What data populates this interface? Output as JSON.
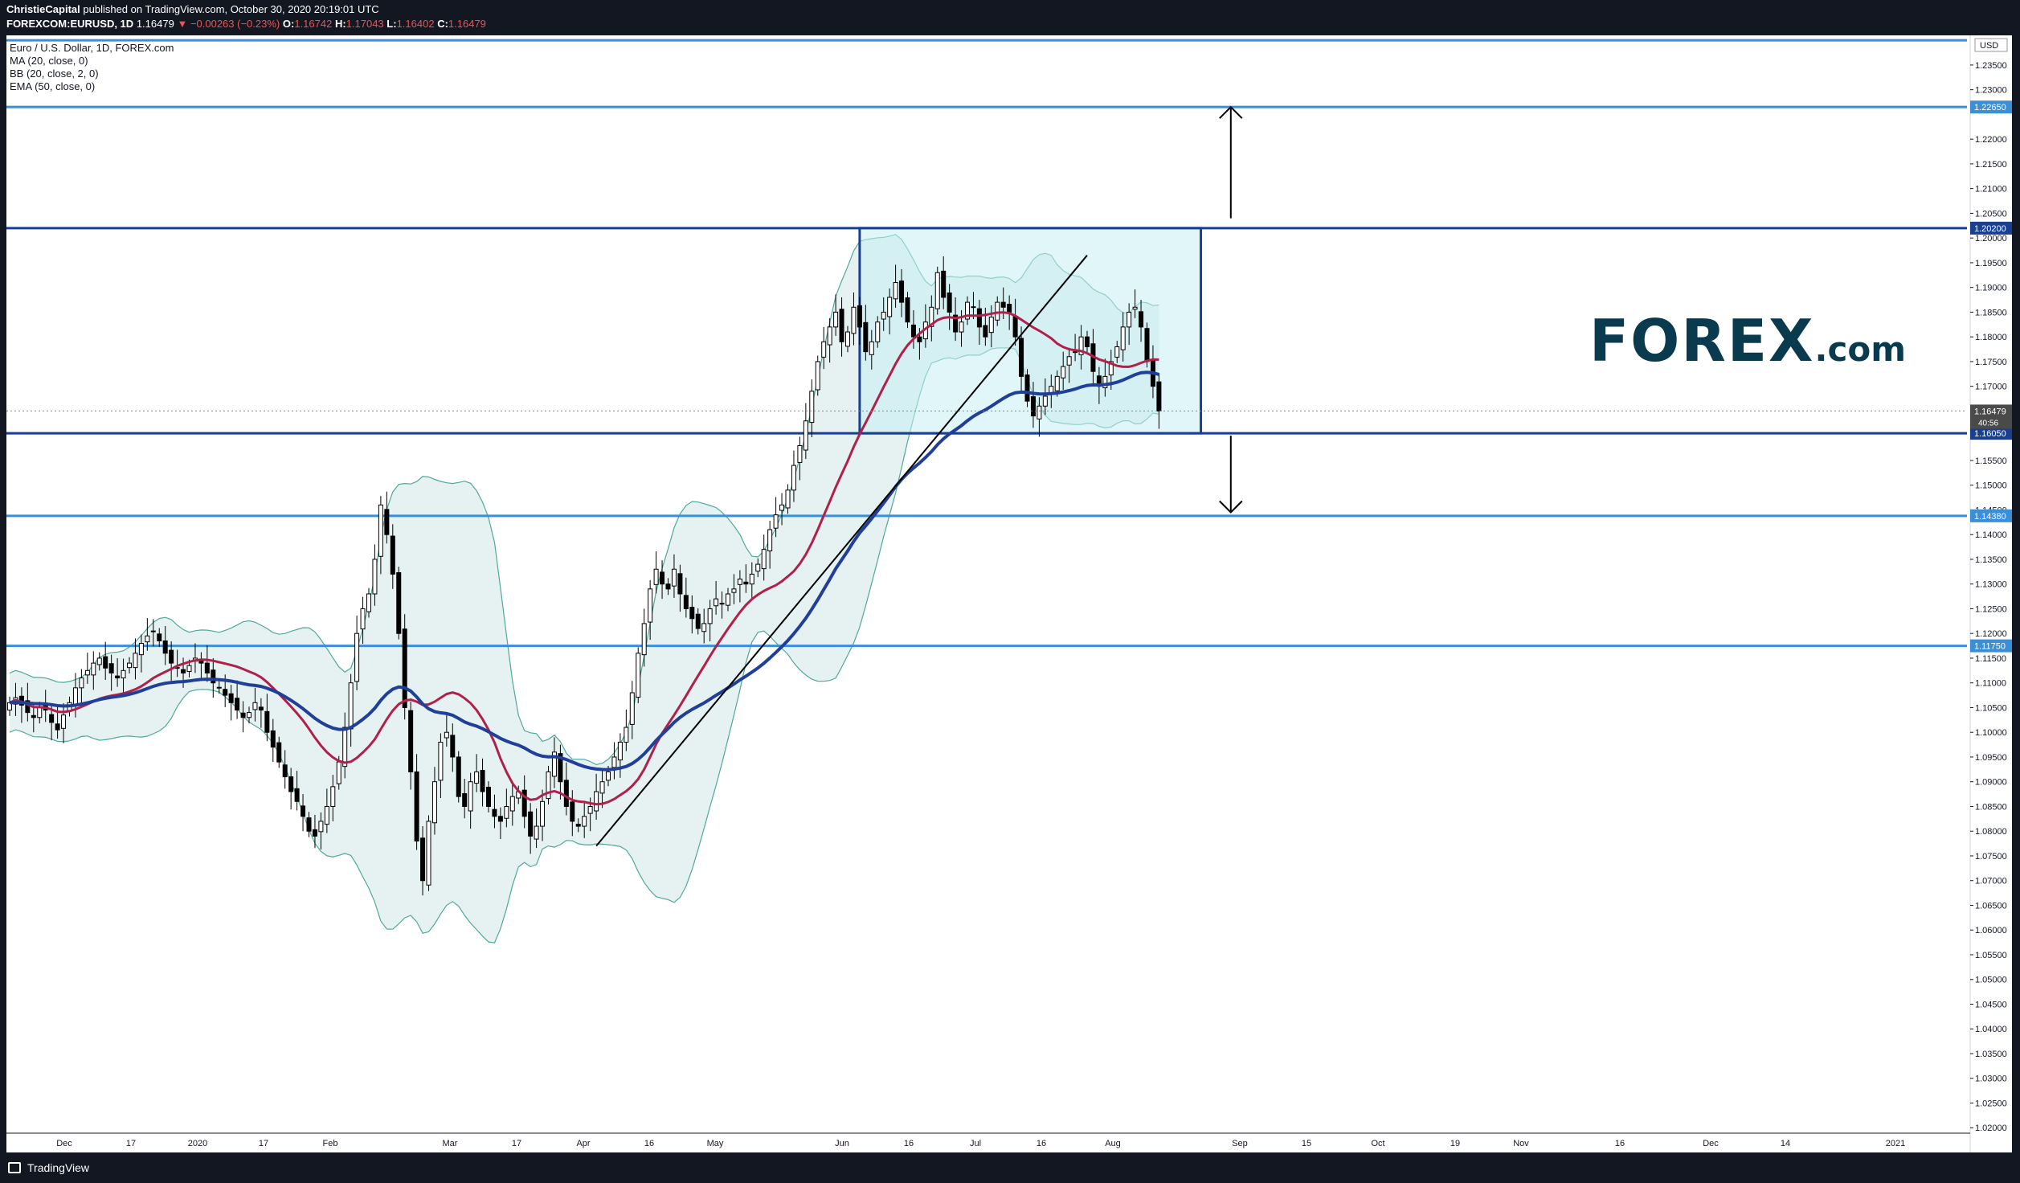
{
  "header": {
    "author": "ChristieCapital",
    "published_text": "published on TradingView.com, October 30, 2020 20:19:01 UTC",
    "symbol": "FOREXCOM:EURUSD, 1D",
    "last": "1.16479",
    "change_arrow": "▼",
    "change": "−0.00263 (−0.23%)",
    "o_label": "O:",
    "o_value": "1.16742",
    "h_label": "H:",
    "h_value": "1.17043",
    "l_label": "L:",
    "l_value": "1.16402",
    "c_label": "C:",
    "c_value": "1.16479"
  },
  "legend": {
    "title": "Euro / U.S. Dollar, 1D, FOREX.com",
    "ma": "MA (20, close, 0)",
    "bb": "BB (20, close, 2, 0)",
    "ema": "EMA (50, close, 0)"
  },
  "brand": {
    "logo_main": "FOREX",
    "logo_suffix": ".com"
  },
  "footer": {
    "tradingview": "TradingView"
  },
  "colors": {
    "up_candle": "#ffffff",
    "down_candle": "#000000",
    "ma20": "#b0204a",
    "ema50": "#1f3f99",
    "bb_band": "#4fa89a",
    "bb_fill": "#e6f2f1",
    "hline_light": "#3a8fd6",
    "hline_dark": "#1b3f8f",
    "range_fill": "#c6eef2"
  },
  "chart_data": {
    "type": "line",
    "title": "Euro / U.S. Dollar, 1D, FOREX.com",
    "xlabel": "",
    "ylabel": "",
    "price_scale_label": "USD",
    "x_ticks": [
      "Dec",
      "17",
      "2020",
      "17",
      "Feb",
      "Mar",
      "17",
      "Apr",
      "16",
      "May",
      "Jun",
      "16",
      "Jul",
      "16",
      "Aug",
      "Sep",
      "15",
      "Oct",
      "19",
      "Nov",
      "16",
      "Dec",
      "14",
      "2021"
    ],
    "y_ticks": [
      "1.23500",
      "1.23000",
      "1.22000",
      "1.21500",
      "1.21000",
      "1.20500",
      "1.20000",
      "1.19500",
      "1.19000",
      "1.18500",
      "1.18000",
      "1.17500",
      "1.17000",
      "1.15500",
      "1.15000",
      "1.14500",
      "1.14000",
      "1.13500",
      "1.13000",
      "1.12500",
      "1.12000",
      "1.11500",
      "1.11000",
      "1.10500",
      "1.10000",
      "1.09500",
      "1.09000",
      "1.08500",
      "1.08000",
      "1.07500",
      "1.07000",
      "1.06500",
      "1.06000",
      "1.05500",
      "1.05000",
      "1.04500",
      "1.04000",
      "1.03500",
      "1.03000",
      "1.02500",
      "1.02000"
    ],
    "ylim": [
      1.015,
      1.241
    ],
    "horizontal_levels": [
      {
        "value": 1.24,
        "label": "",
        "style": "light"
      },
      {
        "value": 1.2265,
        "label": "1.22650",
        "style": "light"
      },
      {
        "value": 1.202,
        "label": "1.20200",
        "style": "dark"
      },
      {
        "value": 1.1605,
        "label": "1.16050",
        "style": "dark"
      },
      {
        "value": 1.1438,
        "label": "1.14380",
        "style": "light"
      },
      {
        "value": 1.1175,
        "label": "1.11750",
        "style": "light"
      }
    ],
    "last_price_label": "1.16479",
    "last_price_sublabel": "40:56",
    "range_box": {
      "x_start": 142,
      "x_end": 199,
      "top": 1.202,
      "bottom": 1.1605
    },
    "trendline": {
      "x1": 98,
      "y1": 1.077,
      "x2": 180,
      "y2": 1.1965
    },
    "arrows": [
      {
        "x": 204,
        "from": 1.204,
        "to": 1.2265
      },
      {
        "x": 204,
        "from": 1.16,
        "to": 1.1445
      }
    ],
    "series": [
      {
        "name": "EURUSD",
        "close": [
          1.106,
          1.107,
          1.1055,
          1.104,
          1.103,
          1.105,
          1.1045,
          1.102,
          1.1005,
          1.1035,
          1.106,
          1.109,
          1.111,
          1.1125,
          1.114,
          1.115,
          1.113,
          1.112,
          1.111,
          1.1125,
          1.114,
          1.116,
          1.118,
          1.1195,
          1.1205,
          1.1185,
          1.116,
          1.114,
          1.113,
          1.112,
          1.1135,
          1.115,
          1.114,
          1.112,
          1.11,
          1.109,
          1.1075,
          1.106,
          1.1045,
          1.103,
          1.104,
          1.106,
          1.1045,
          1.1,
          1.097,
          1.094,
          1.091,
          1.088,
          1.086,
          1.083,
          1.08,
          1.079,
          1.082,
          1.085,
          1.089,
          1.094,
          1.101,
          1.11,
          1.12,
          1.125,
          1.128,
          1.135,
          1.146,
          1.14,
          1.132,
          1.12,
          1.105,
          1.092,
          1.078,
          1.07,
          1.082,
          1.09,
          1.098,
          1.1,
          1.095,
          1.087,
          1.085,
          1.09,
          1.092,
          1.088,
          1.085,
          1.083,
          1.082,
          1.085,
          1.087,
          1.088,
          1.083,
          1.079,
          1.081,
          1.086,
          1.092,
          1.096,
          1.09,
          1.085,
          1.082,
          1.081,
          1.083,
          1.085,
          1.088,
          1.09,
          1.092,
          1.095,
          1.098,
          1.101,
          1.108,
          1.116,
          1.122,
          1.129,
          1.133,
          1.13,
          1.129,
          1.133,
          1.128,
          1.125,
          1.123,
          1.121,
          1.122,
          1.125,
          1.127,
          1.126,
          1.128,
          1.129,
          1.131,
          1.13,
          1.132,
          1.134,
          1.137,
          1.141,
          1.144,
          1.146,
          1.149,
          1.154,
          1.158,
          1.163,
          1.169,
          1.175,
          1.179,
          1.182,
          1.185,
          1.179,
          1.181,
          1.186,
          1.182,
          1.177,
          1.179,
          1.183,
          1.185,
          1.188,
          1.191,
          1.187,
          1.183,
          1.18,
          1.179,
          1.183,
          1.186,
          1.193,
          1.188,
          1.185,
          1.181,
          1.183,
          1.187,
          1.186,
          1.182,
          1.18,
          1.184,
          1.187,
          1.186,
          1.185,
          1.18,
          1.172,
          1.167,
          1.164,
          1.166,
          1.168,
          1.17,
          1.172,
          1.174,
          1.176,
          1.177,
          1.18,
          1.178,
          1.173,
          1.17,
          1.172,
          1.175,
          1.178,
          1.182,
          1.185,
          1.186,
          1.182,
          1.175,
          1.17,
          1.165
        ]
      },
      {
        "name": "MA (20, close, 0)",
        "values": []
      },
      {
        "name": "EMA (50, close, 0)",
        "values": []
      },
      {
        "name": "BB (20, close, 2, 0)",
        "values": []
      }
    ]
  }
}
